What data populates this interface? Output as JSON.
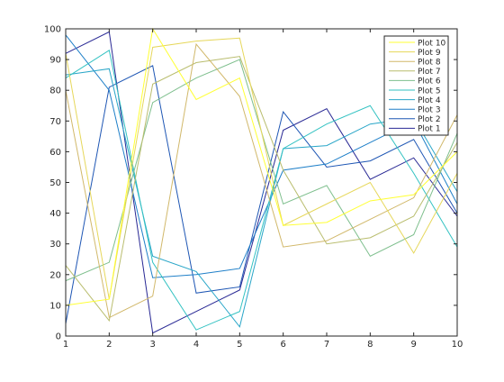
{
  "chart_data": {
    "type": "line",
    "title": "",
    "xlabel": "",
    "ylabel": "",
    "xlim": [
      1,
      10
    ],
    "ylim": [
      0,
      100
    ],
    "xticks": [
      1,
      2,
      3,
      4,
      5,
      6,
      7,
      8,
      9,
      10
    ],
    "yticks": [
      0,
      10,
      20,
      30,
      40,
      50,
      60,
      70,
      80,
      90,
      100
    ],
    "grid": false,
    "legend_position": "top-right",
    "x": [
      1,
      2,
      3,
      4,
      5,
      6,
      7,
      8,
      9,
      10
    ],
    "series": [
      {
        "name": "Plot 10",
        "color": "#ffff33",
        "values": [
          10,
          12,
          100,
          77,
          84,
          36,
          37,
          44,
          46,
          60
        ]
      },
      {
        "name": "Plot 9",
        "color": "#e6d75a",
        "values": [
          92,
          12,
          94,
          96,
          97,
          36,
          43,
          50,
          27,
          53
        ]
      },
      {
        "name": "Plot 8",
        "color": "#d1b86a",
        "values": [
          80,
          6,
          13,
          95,
          78,
          29,
          31,
          38,
          45,
          72
        ]
      },
      {
        "name": "Plot 7",
        "color": "#b9bd6e",
        "values": [
          23,
          5,
          82,
          89,
          91,
          54,
          30,
          32,
          39,
          63
        ]
      },
      {
        "name": "Plot 6",
        "color": "#7ebf8d",
        "values": [
          18,
          24,
          76,
          84,
          90,
          43,
          49,
          26,
          33,
          66
        ]
      },
      {
        "name": "Plot 5",
        "color": "#33c2c2",
        "values": [
          84,
          93,
          24,
          2,
          8,
          61,
          69,
          75,
          53,
          29
        ]
      },
      {
        "name": "Plot 4",
        "color": "#29a6c8",
        "values": [
          85,
          87,
          26,
          21,
          3,
          61,
          62,
          69,
          71,
          47
        ]
      },
      {
        "name": "Plot 3",
        "color": "#1e7fc8",
        "values": [
          98,
          80,
          19,
          20,
          22,
          54,
          56,
          63,
          70,
          43
        ]
      },
      {
        "name": "Plot 2",
        "color": "#1e56b4",
        "values": [
          4,
          81,
          88,
          14,
          16,
          73,
          55,
          57,
          64,
          40
        ]
      },
      {
        "name": "Plot 1",
        "color": "#282894",
        "values": [
          92,
          99,
          1,
          8,
          15,
          67,
          74,
          51,
          58,
          39
        ]
      }
    ]
  }
}
